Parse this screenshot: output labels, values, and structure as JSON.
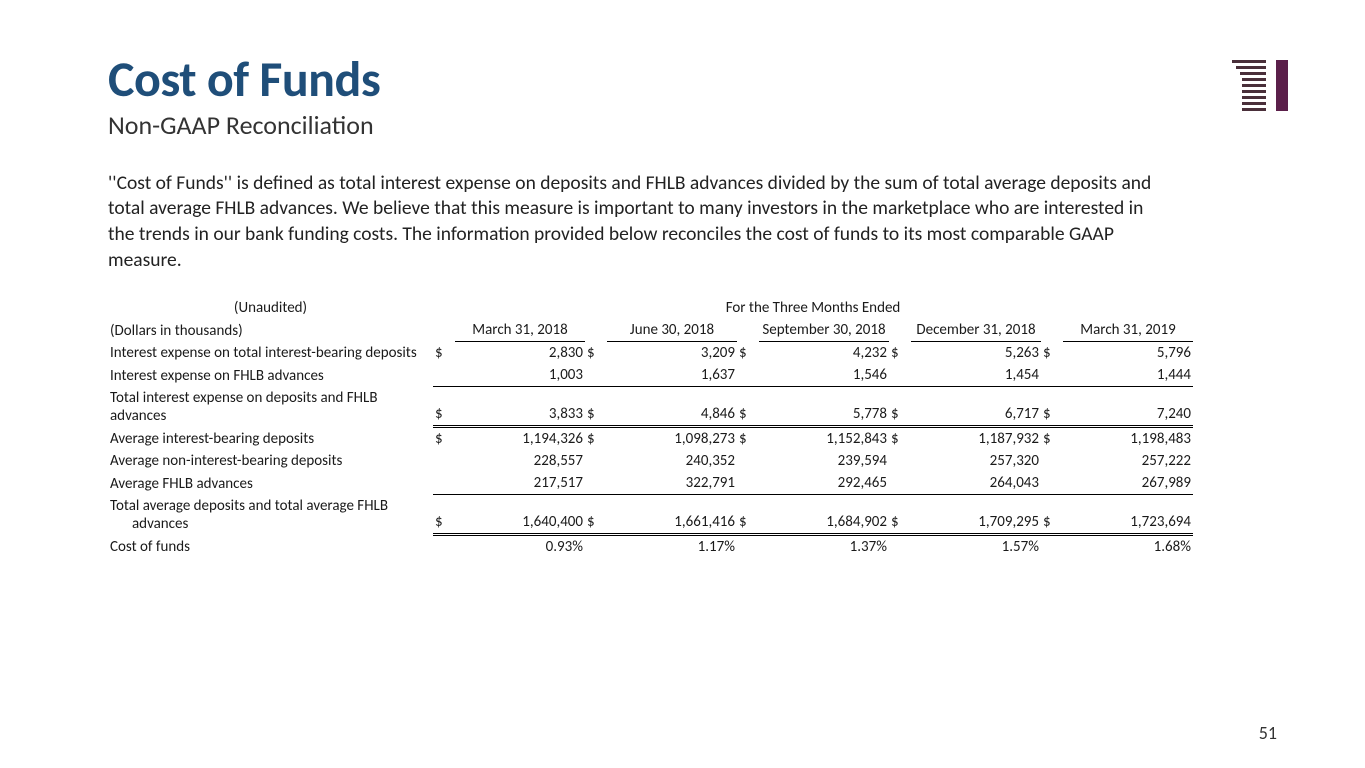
{
  "title": "Cost of Funds",
  "subtitle": "Non-GAAP Reconciliation",
  "description": "''Cost of Funds'' is defined as total interest expense on deposits and FHLB advances divided by the sum of total average deposits and total average FHLB advances. We believe that this measure is important to many investors in the marketplace who are interested in the trends in our bank funding costs. The information provided below reconciles the cost of funds to its most comparable GAAP measure.",
  "page_number": "51",
  "logo": {
    "bar_color": "#4a2f3a",
    "accent_color": "#5b1f4a"
  },
  "table": {
    "unaudited_label": "(Unaudited)",
    "period_header": "For the Three Months Ended",
    "units_label": "(Dollars in thousands)",
    "columns": [
      "March 31, 2018",
      "June 30, 2018",
      "September 30, 2018",
      "December 31, 2018",
      "March 31, 2019"
    ],
    "rows": [
      {
        "label": "Interest expense on total interest-bearing deposits",
        "currency": "$",
        "values": [
          "2,830",
          "3,209",
          "4,232",
          "5,263",
          "5,796"
        ],
        "style": "plain"
      },
      {
        "label": "Interest expense on FHLB advances",
        "currency": "",
        "values": [
          "1,003",
          "1,637",
          "1,546",
          "1,454",
          "1,444"
        ],
        "style": "underline"
      },
      {
        "label": "Total interest expense on deposits and FHLB advances",
        "currency": "$",
        "values": [
          "3,833",
          "4,846",
          "5,778",
          "6,717",
          "7,240"
        ],
        "style": "total"
      },
      {
        "label": "Average interest-bearing deposits",
        "currency": "$",
        "values": [
          "1,194,326",
          "1,098,273",
          "1,152,843",
          "1,187,932",
          "1,198,483"
        ],
        "style": "section"
      },
      {
        "label": "Average non-interest-bearing deposits",
        "currency": "",
        "values": [
          "228,557",
          "240,352",
          "239,594",
          "257,320",
          "257,222"
        ],
        "style": "plain"
      },
      {
        "label": "Average FHLB advances",
        "currency": "",
        "values": [
          "217,517",
          "322,791",
          "292,465",
          "264,043",
          "267,989"
        ],
        "style": "underline"
      },
      {
        "label": "Total average deposits and total average FHLB advances",
        "label_indent": "advances",
        "currency": "$",
        "values": [
          "1,640,400",
          "1,661,416",
          "1,684,902",
          "1,709,295",
          "1,723,694"
        ],
        "style": "total-multiline"
      },
      {
        "label": "Cost of funds",
        "currency": "",
        "values": [
          "0.93%",
          "1.17%",
          "1.37%",
          "1.57%",
          "1.68%"
        ],
        "style": "section-small"
      }
    ]
  }
}
